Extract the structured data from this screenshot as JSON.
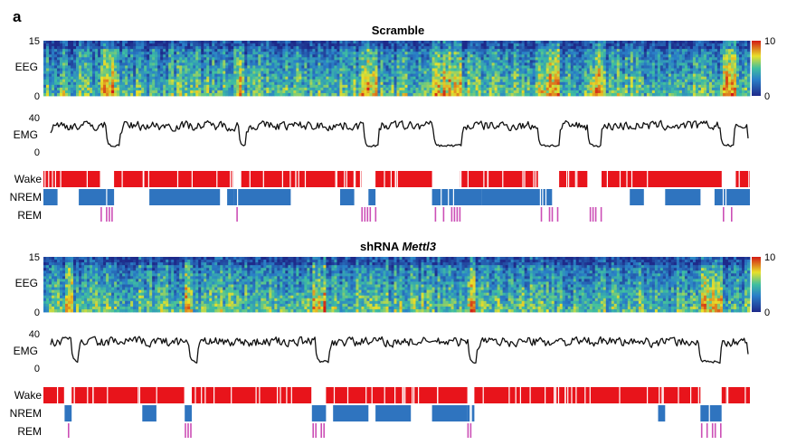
{
  "panel_letter": "a",
  "colorbar": {
    "max_label": "10",
    "min_label": "0"
  },
  "stage_labels": {
    "wake": "Wake",
    "nrem": "NREM",
    "rem": "REM"
  },
  "colors": {
    "wake": "#e8141b",
    "nrem": "#2f74bf",
    "rem": "#cc4fb6",
    "emg_trace": "#111111"
  },
  "chart_data": [
    {
      "type": "heatmap",
      "title": "Scramble",
      "ylabel": "EEG",
      "ylim": [
        0,
        15
      ],
      "y_ticks": [
        "15",
        "0"
      ],
      "colorbar_range": [
        0,
        10
      ],
      "emg": {
        "ylabel": "EMG",
        "ylim": [
          0,
          40
        ],
        "y_ticks": [
          "40",
          "0"
        ]
      },
      "wake_segments": [
        [
          0,
          8
        ],
        [
          10,
          27
        ],
        [
          28,
          45
        ],
        [
          47,
          55
        ],
        [
          59,
          70
        ],
        [
          73,
          77
        ],
        [
          79,
          96
        ],
        [
          98,
          100
        ]
      ],
      "nrem_segments": [
        [
          0,
          2
        ],
        [
          5,
          10
        ],
        [
          15,
          25
        ],
        [
          26,
          27
        ],
        [
          27,
          35
        ],
        [
          42,
          44
        ],
        [
          46,
          47
        ],
        [
          55,
          62
        ],
        [
          62,
          72
        ],
        [
          83,
          85
        ],
        [
          88,
          93
        ],
        [
          95,
          100
        ]
      ]
    },
    {
      "type": "heatmap",
      "title": "shRNA Mettl3",
      "title_plain": "shRNA ",
      "title_italic": "Mettl3",
      "ylabel": "EEG",
      "ylim": [
        0,
        15
      ],
      "y_ticks": [
        "15",
        "0"
      ],
      "colorbar_range": [
        0,
        10
      ],
      "emg": {
        "ylabel": "EMG",
        "ylim": [
          0,
          40
        ],
        "y_ticks": [
          "40",
          "0"
        ]
      },
      "wake_segments": [
        [
          0,
          3
        ],
        [
          4,
          20
        ],
        [
          21,
          38
        ],
        [
          40,
          60
        ],
        [
          61,
          93
        ],
        [
          96,
          100
        ]
      ],
      "nrem_segments": [
        [
          3,
          4
        ],
        [
          14,
          16
        ],
        [
          20,
          21
        ],
        [
          38,
          40
        ],
        [
          41,
          46
        ],
        [
          47,
          52
        ],
        [
          55,
          60
        ],
        [
          60,
          61
        ],
        [
          87,
          88
        ],
        [
          93,
          96
        ]
      ]
    }
  ]
}
